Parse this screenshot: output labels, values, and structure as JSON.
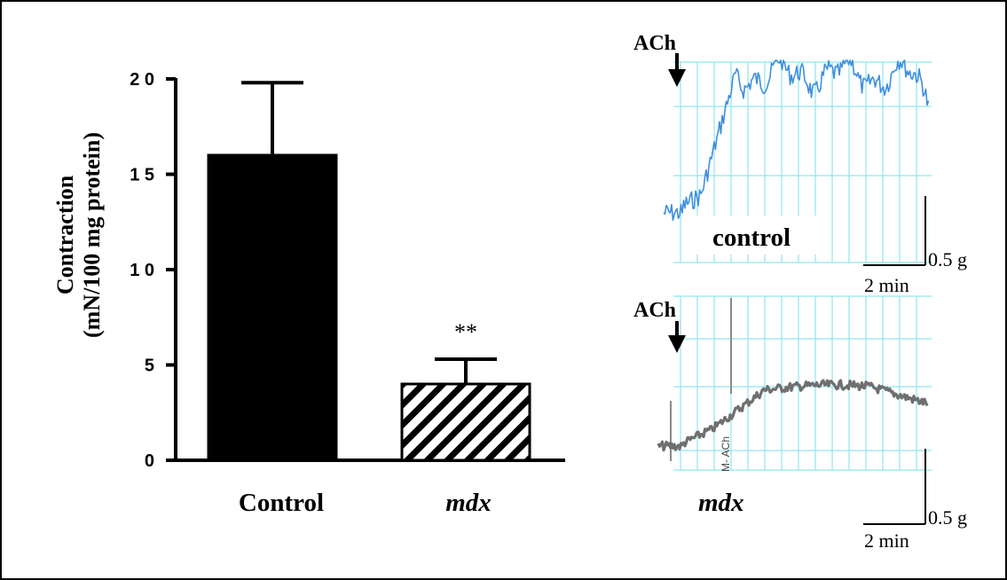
{
  "chart_data": [
    {
      "type": "bar",
      "categories": [
        "Control",
        "mdx"
      ],
      "values": [
        16,
        4
      ],
      "errors": [
        3.8,
        1.3
      ],
      "significance": [
        "",
        "**"
      ],
      "ylabel_line1": "Contraction",
      "ylabel_line2": "(mN/100 mg protein)",
      "ylim": [
        0,
        20
      ],
      "yticks": [
        "0",
        "5",
        "1 0",
        "1 5",
        "2 0"
      ],
      "bar_fills": [
        "#000000",
        "hatched"
      ],
      "colors": {
        "control_bar": "#000000",
        "mdx_bar_hatch": "#000000"
      }
    },
    {
      "type": "line",
      "panel": "control",
      "label": "control",
      "stimulus": "ACh",
      "scale_y": "0.5 g",
      "scale_x": "2 min",
      "color": "#3d8fe0",
      "grid_color": "#8fe6ee"
    },
    {
      "type": "line",
      "panel": "mdx",
      "label": "mdx",
      "stimulus": "ACh",
      "scale_y": "0.5 g",
      "scale_x": "2 min",
      "trace_annotation": "M- ACh",
      "color": "#6f6f6f",
      "grid_color": "#8fe6ee"
    }
  ]
}
